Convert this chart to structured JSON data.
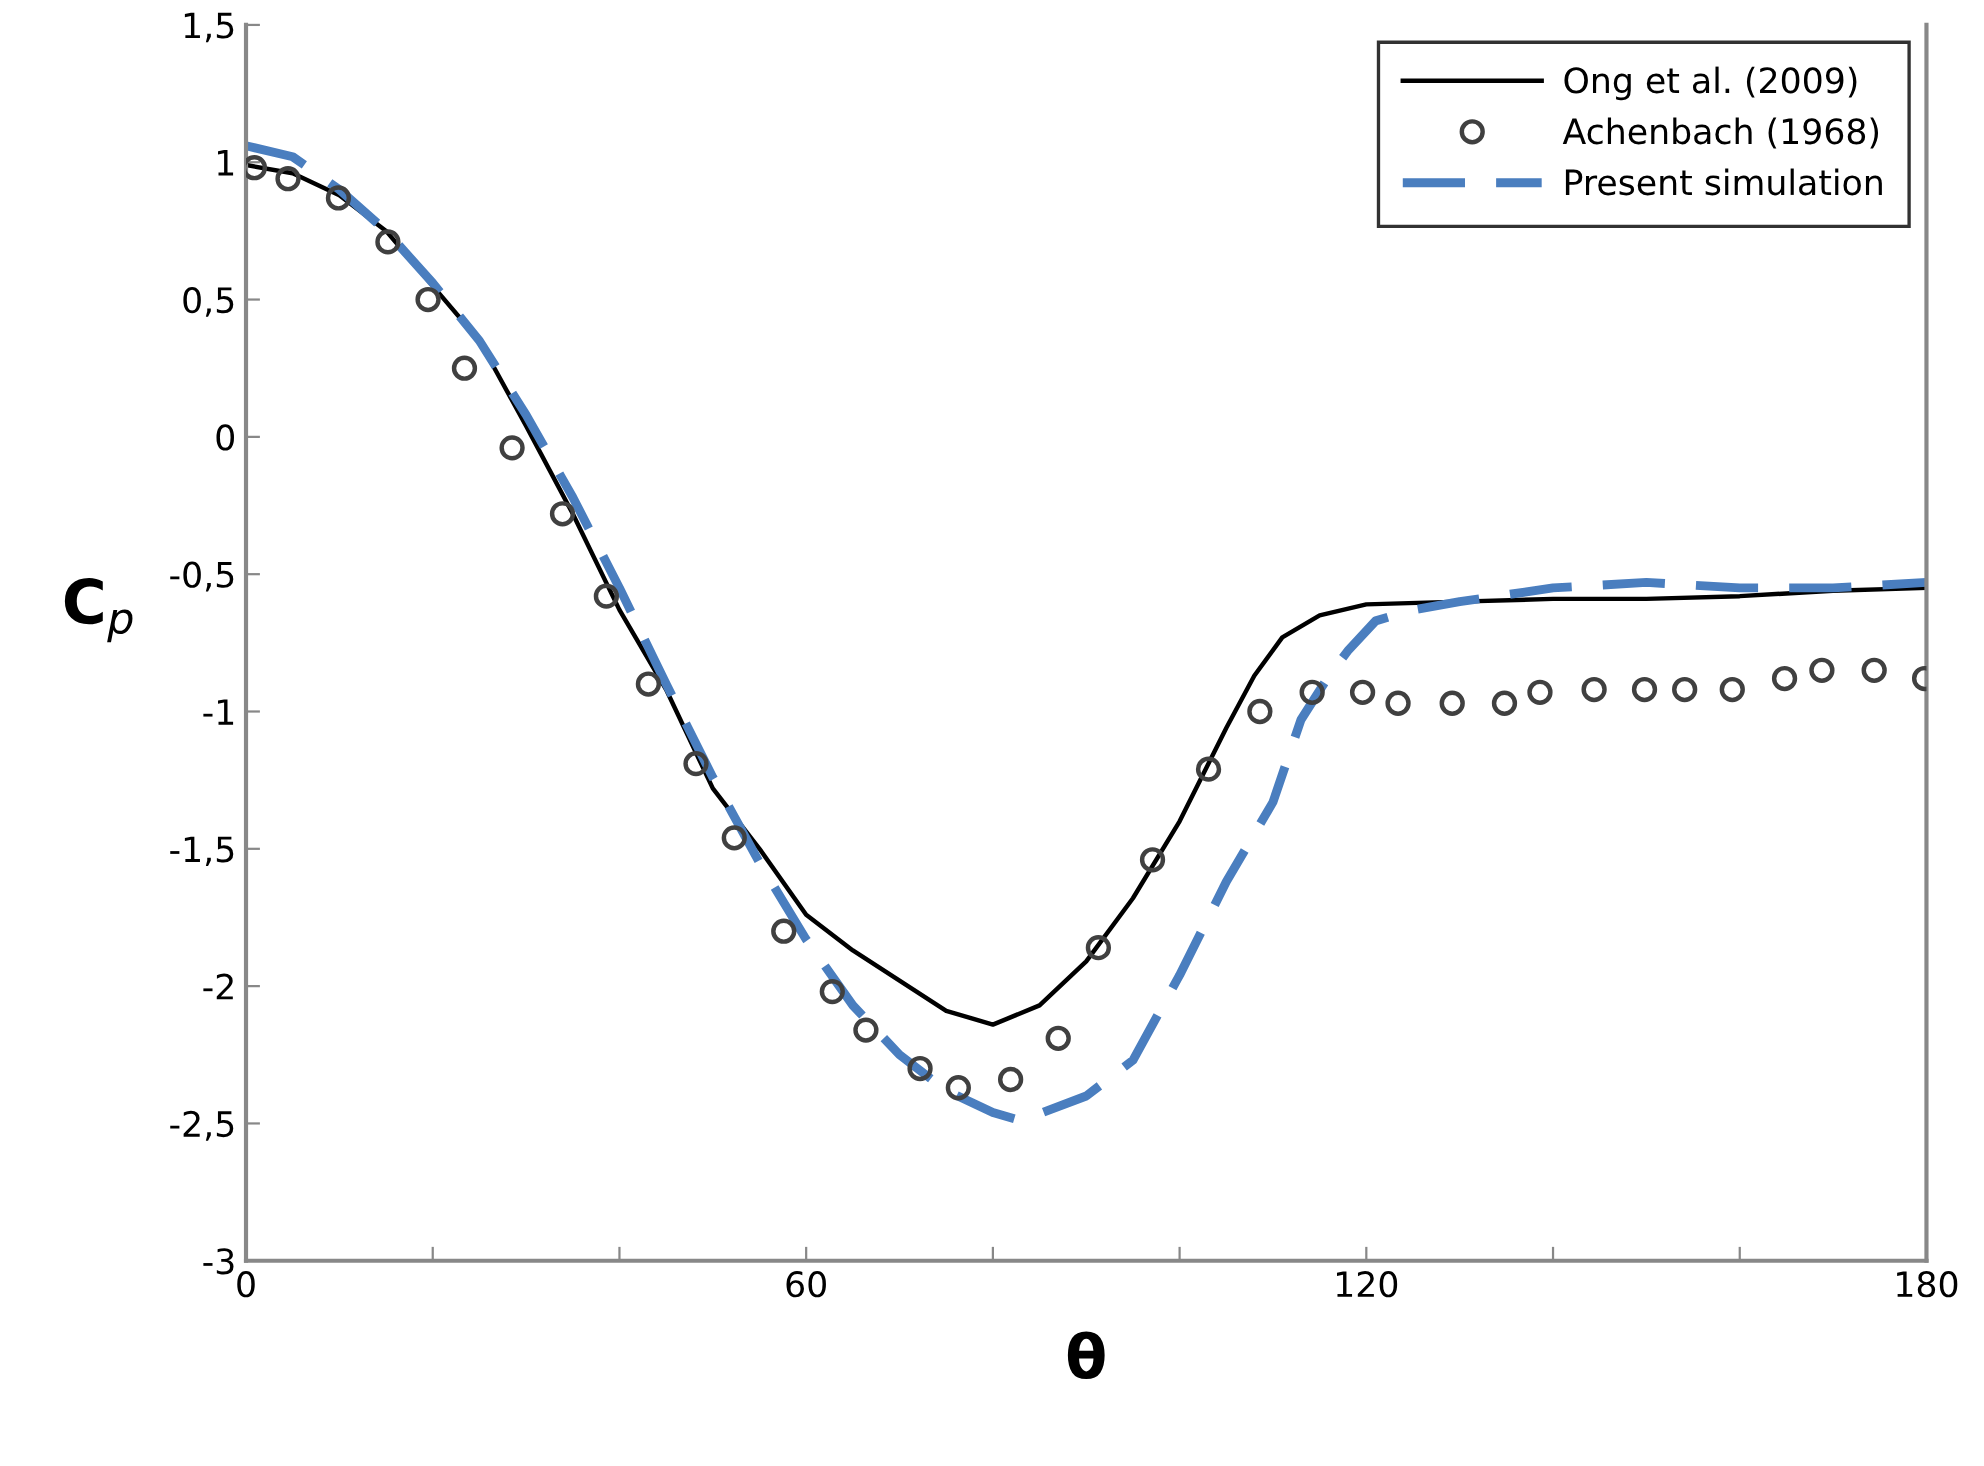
{
  "chart_data": {
    "type": "line",
    "xlabel": "θ",
    "ylabel": "C$_{p}$",
    "xlim": [
      0,
      180
    ],
    "ylim": [
      -3,
      1.5
    ],
    "xticks": [
      0,
      {
        "value": 20,
        "label": null
      },
      {
        "value": 40,
        "label": null
      },
      60,
      {
        "value": 80,
        "label": null
      },
      {
        "value": 100,
        "label": null
      },
      120,
      {
        "value": 140,
        "label": null
      },
      {
        "value": 160,
        "label": null
      },
      180
    ],
    "yticks": [
      {
        "value": -3,
        "label": "-3"
      },
      {
        "value": -2.5,
        "label": "-2,5"
      },
      {
        "value": -2,
        "label": "-2"
      },
      {
        "value": -1.5,
        "label": "-1,5"
      },
      {
        "value": -1,
        "label": "-1"
      },
      {
        "value": -0.5,
        "label": "-0,5"
      },
      {
        "value": 0,
        "label": "0"
      },
      {
        "value": 0.5,
        "label": "0,5"
      },
      {
        "value": 1,
        "label": "1"
      },
      {
        "value": 1.5,
        "label": "1,5"
      }
    ],
    "grid": false,
    "legend": "top right",
    "series": [
      {
        "name": "Ong et al. (2009)",
        "color": "#000000",
        "line_style": "solid",
        "marker": "none",
        "x": [
          0,
          5,
          10,
          15,
          20,
          25,
          30,
          35,
          40,
          45,
          50,
          55,
          60,
          65,
          70,
          75,
          80,
          85,
          90,
          95,
          100,
          105,
          108,
          111,
          115,
          120,
          130,
          140,
          150,
          160,
          170,
          180
        ],
        "values": [
          0.99,
          0.96,
          0.88,
          0.75,
          0.55,
          0.35,
          0.04,
          -0.28,
          -0.63,
          -0.92,
          -1.28,
          -1.5,
          -1.74,
          -1.87,
          -1.98,
          -2.09,
          -2.14,
          -2.07,
          -1.91,
          -1.68,
          -1.4,
          -1.06,
          -0.87,
          -0.73,
          -0.65,
          -0.61,
          -0.6,
          -0.59,
          -0.59,
          -0.58,
          -0.56,
          -0.55
        ]
      },
      {
        "name": "Achenbach (1968)",
        "type": "scatter",
        "color": "#404040",
        "marker": "circle",
        "x": [
          0.9,
          4.5,
          9.9,
          15.2,
          19.5,
          23.4,
          28.5,
          33.9,
          38.6,
          43.1,
          48.2,
          52.3,
          57.6,
          62.8,
          66.4,
          72.2,
          76.3,
          81.9,
          87.0,
          91.3,
          97.1,
          103.1,
          108.6,
          114.2,
          119.6,
          123.4,
          129.2,
          134.8,
          138.6,
          144.4,
          149.8,
          154.1,
          159.2,
          164.8,
          168.8,
          174.4,
          179.8
        ],
        "values": [
          0.98,
          0.94,
          0.87,
          0.71,
          0.5,
          0.25,
          -0.04,
          -0.28,
          -0.58,
          -0.9,
          -1.19,
          -1.46,
          -1.8,
          -2.02,
          -2.16,
          -2.3,
          -2.37,
          -2.34,
          -2.19,
          -1.86,
          -1.54,
          -1.21,
          -1.0,
          -0.93,
          -0.93,
          -0.97,
          -0.97,
          -0.97,
          -0.93,
          -0.92,
          -0.92,
          -0.92,
          -0.92,
          -0.88,
          -0.85,
          -0.85,
          -0.88
        ]
      },
      {
        "name": "Present simulation",
        "color": "#4a7ebf",
        "line_style": "dashed",
        "marker": "none",
        "x": [
          0,
          5,
          10,
          15,
          20,
          25,
          30,
          35,
          40,
          45,
          50,
          55,
          60,
          65,
          70,
          75,
          80,
          83,
          90,
          95,
          100,
          105,
          110,
          113,
          116,
          118,
          121,
          125,
          130,
          140,
          150,
          160,
          170,
          180
        ],
        "values": [
          1.06,
          1.02,
          0.9,
          0.75,
          0.56,
          0.35,
          0.08,
          -0.22,
          -0.55,
          -0.9,
          -1.24,
          -1.55,
          -1.83,
          -2.07,
          -2.25,
          -2.38,
          -2.46,
          -2.49,
          -2.4,
          -2.27,
          -1.96,
          -1.62,
          -1.33,
          -1.03,
          -0.87,
          -0.78,
          -0.67,
          -0.63,
          -0.6,
          -0.55,
          -0.53,
          -0.55,
          -0.55,
          -0.53
        ]
      }
    ]
  }
}
